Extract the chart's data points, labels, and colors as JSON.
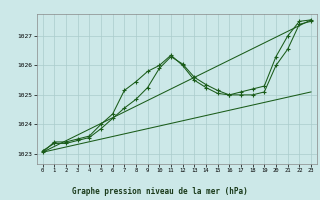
{
  "background_color": "#cce8e8",
  "grid_color": "#aacccc",
  "line_color": "#1a5c1a",
  "title": "Graphe pression niveau de la mer (hPa)",
  "xlim": [
    -0.5,
    23.5
  ],
  "ylim": [
    1022.65,
    1027.75
  ],
  "yticks": [
    1023,
    1024,
    1025,
    1026,
    1027
  ],
  "xticks": [
    0,
    1,
    2,
    3,
    4,
    5,
    6,
    7,
    8,
    9,
    10,
    11,
    12,
    13,
    14,
    15,
    16,
    17,
    18,
    19,
    20,
    21,
    22,
    23
  ],
  "series1_x": [
    0,
    1,
    2,
    3,
    4,
    5,
    6,
    7,
    8,
    9,
    10,
    11,
    12,
    13,
    14,
    15,
    16,
    17,
    18,
    19,
    20,
    21,
    22,
    23
  ],
  "series1_y": [
    1023.1,
    1023.35,
    1023.35,
    1023.45,
    1023.55,
    1023.85,
    1024.2,
    1024.55,
    1024.85,
    1025.25,
    1025.9,
    1026.3,
    1026.05,
    1025.6,
    1025.35,
    1025.15,
    1025.0,
    1025.0,
    1025.0,
    1025.1,
    1026.0,
    1026.55,
    1027.4,
    1027.5
  ],
  "series2_x": [
    0,
    1,
    2,
    3,
    4,
    5,
    6,
    7,
    8,
    9,
    10,
    11,
    12,
    13,
    14,
    15,
    16,
    17,
    18,
    19,
    20,
    21,
    22,
    23
  ],
  "series2_y": [
    1023.05,
    1023.4,
    1023.4,
    1023.5,
    1023.6,
    1024.0,
    1024.35,
    1025.15,
    1025.45,
    1025.8,
    1026.0,
    1026.35,
    1026.0,
    1025.5,
    1025.25,
    1025.05,
    1025.0,
    1025.1,
    1025.2,
    1025.3,
    1026.3,
    1027.0,
    1027.5,
    1027.55
  ],
  "series3_x": [
    0,
    23
  ],
  "series3_y": [
    1023.05,
    1027.55
  ],
  "series4_x": [
    0,
    23
  ],
  "series4_y": [
    1023.05,
    1025.1
  ]
}
